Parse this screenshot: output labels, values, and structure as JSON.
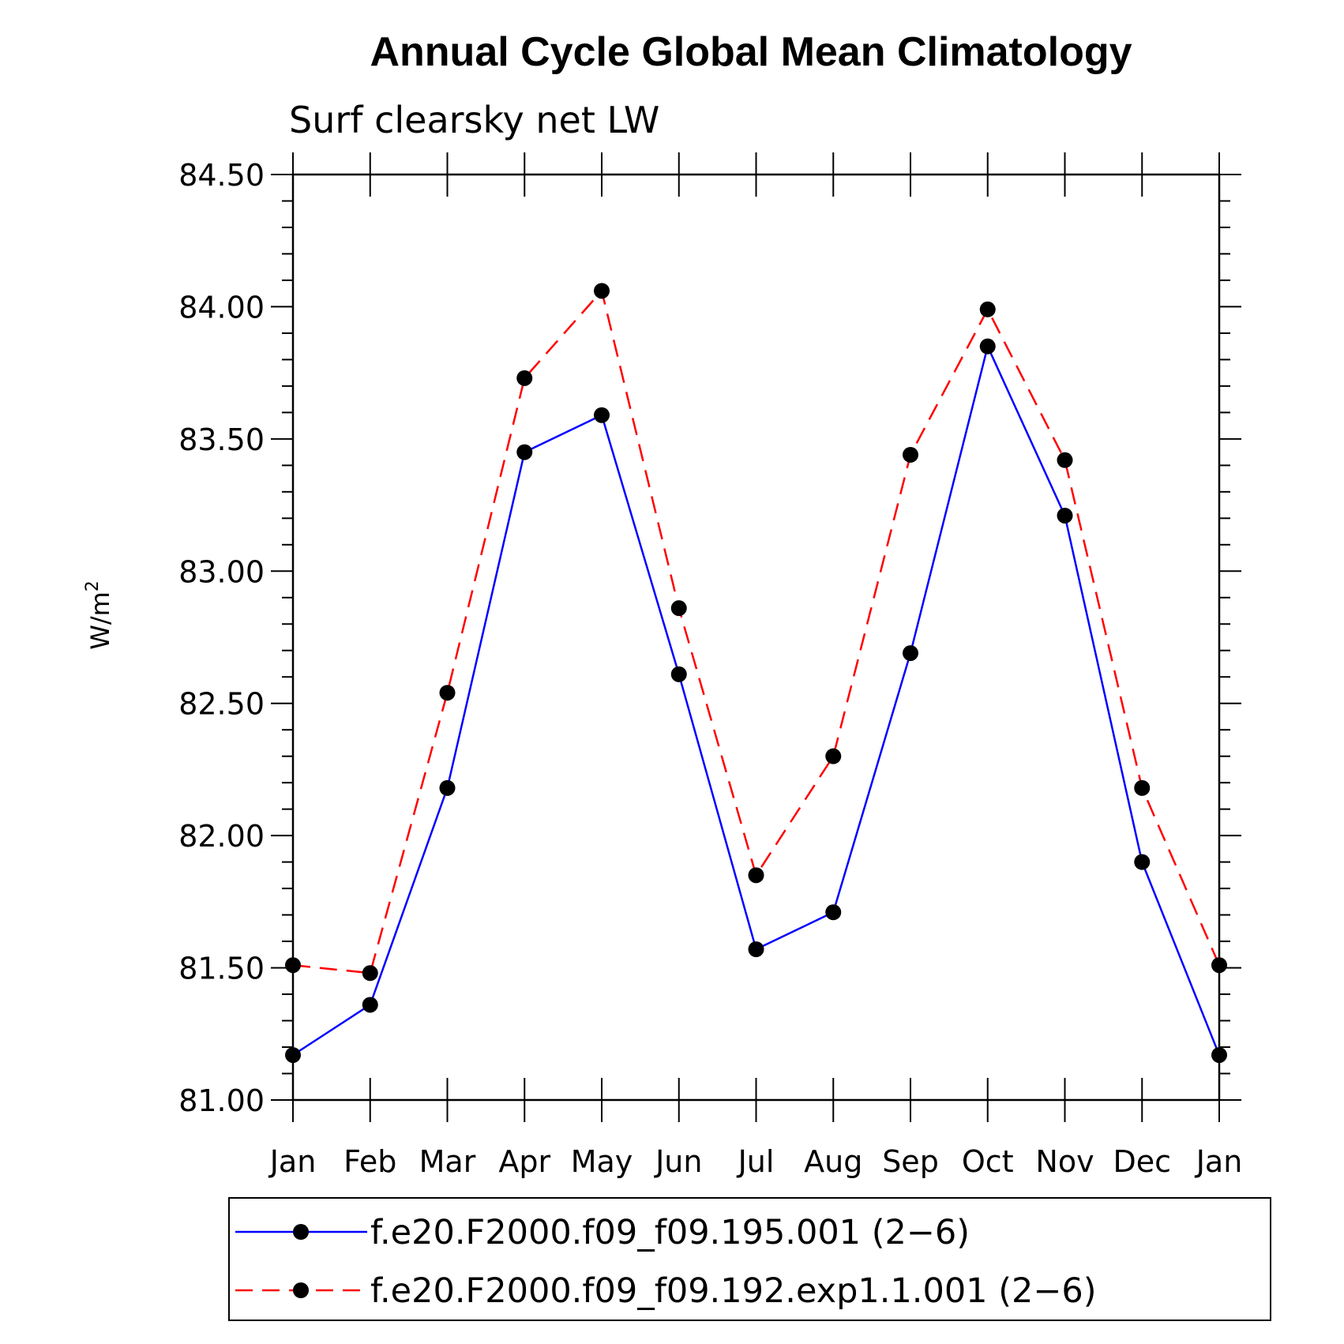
{
  "chart_data": {
    "type": "line",
    "title": "Annual Cycle Global Mean Climatology",
    "subtitle": "Surf clearsky net LW",
    "ylabel": "W/m",
    "ylabel_superscript": "2",
    "categories": [
      "Jan",
      "Feb",
      "Mar",
      "Apr",
      "May",
      "Jun",
      "Jul",
      "Aug",
      "Sep",
      "Oct",
      "Nov",
      "Dec",
      "Jan"
    ],
    "ylim": [
      81.0,
      84.5
    ],
    "yticks": [
      "81.00",
      "81.50",
      "82.00",
      "82.50",
      "83.00",
      "83.50",
      "84.00",
      "84.50"
    ],
    "legend_position": "bottom",
    "series": [
      {
        "name": "f.e20.F2000.f09_f09.195.001 (2−6)",
        "color": "#0000ff",
        "style": "solid",
        "values": [
          81.17,
          81.36,
          82.18,
          83.45,
          83.59,
          82.61,
          81.57,
          81.71,
          82.69,
          83.85,
          83.21,
          81.9,
          81.17
        ]
      },
      {
        "name": "f.e20.F2000.f09_f09.192.exp1.1.001 (2−6)",
        "color": "#ff0000",
        "style": "dashed",
        "values": [
          81.51,
          81.48,
          82.54,
          83.73,
          84.06,
          82.86,
          81.85,
          82.3,
          83.44,
          83.99,
          83.42,
          82.18,
          81.51
        ]
      }
    ]
  }
}
